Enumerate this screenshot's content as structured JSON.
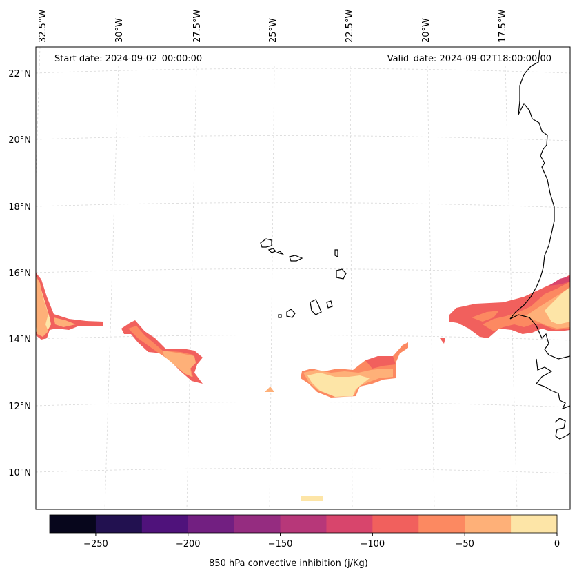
{
  "header": {
    "start_date": "Start date: 2024-09-02_00:00:00",
    "valid_date": "Valid_date: 2024-09-02T18:00:00.00"
  },
  "map": {
    "projection": "conic",
    "lon_labels": [
      "32.5°W",
      "30°W",
      "27.5°W",
      "25°W",
      "22.5°W",
      "20°W",
      "17.5°W"
    ],
    "lat_labels": [
      "22°N",
      "20°N",
      "18°N",
      "16°N",
      "14°N",
      "12°N",
      "10°N"
    ],
    "grid": "dashed",
    "features": [
      "Cape Verde islands",
      "West African coastline"
    ]
  },
  "colorbar": {
    "title": "850 hPa convective inhibition (j/Kg)",
    "ticks": [
      "−250",
      "−200",
      "−150",
      "−100",
      "−50",
      "0"
    ],
    "levels": [
      -275,
      -250,
      -225,
      -200,
      -175,
      -150,
      -125,
      -100,
      -75,
      -50,
      -25,
      0
    ],
    "colors": [
      "#07061c",
      "#221150",
      "#4f127b",
      "#721f81",
      "#952c80",
      "#b73779",
      "#d8456c",
      "#f1605d",
      "#fc8961",
      "#feb078",
      "#fde5a7"
    ]
  }
}
